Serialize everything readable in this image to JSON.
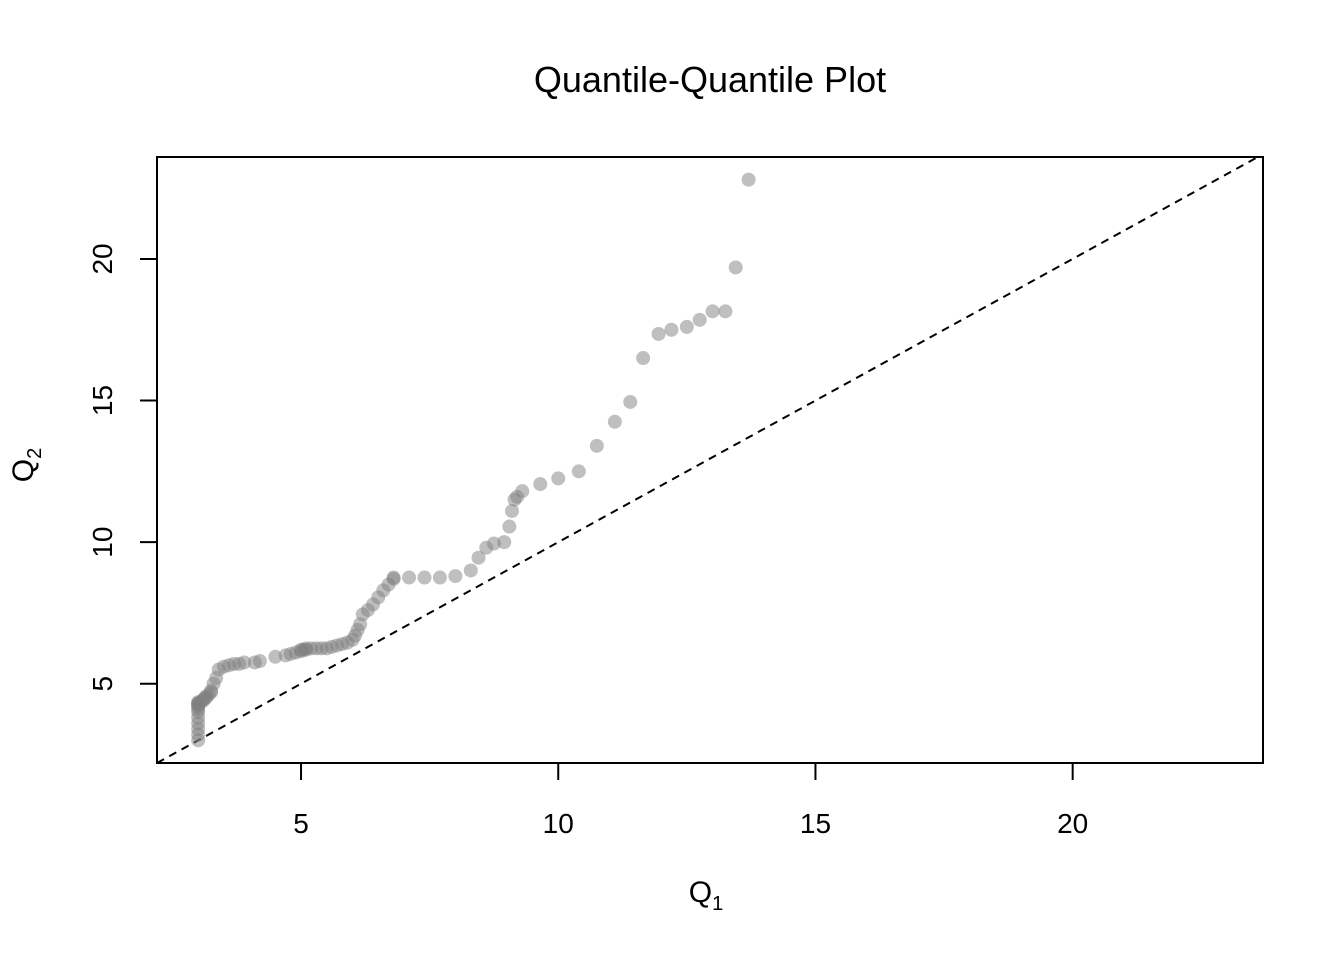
{
  "chart_data": {
    "type": "scatter",
    "title": "Quantile-Quantile Plot",
    "xlabel": {
      "main": "Q",
      "sub": "1"
    },
    "ylabel": {
      "main": "Q",
      "sub": "2"
    },
    "xlim": [
      2.2,
      23.7
    ],
    "ylim": [
      2.2,
      23.6
    ],
    "xticks": [
      5,
      10,
      15,
      20
    ],
    "yticks": [
      5,
      10,
      15,
      20
    ],
    "xtick_labels": [
      "5",
      "10",
      "15",
      "20"
    ],
    "ytick_labels": [
      "5",
      "10",
      "15",
      "20"
    ],
    "grid": false,
    "reference_line": {
      "type": "y=x",
      "style": "dashed",
      "color": "#000000"
    },
    "point_color": "#808080",
    "point_opacity": 0.5,
    "series": [
      {
        "x": [
          3.0,
          3.0,
          3.0,
          3.0,
          3.0,
          3.0,
          3.0,
          3.0,
          3.0,
          3.0,
          3.0,
          3.0,
          3.05,
          3.1,
          3.1,
          3.15,
          3.15,
          3.2,
          3.25,
          3.25,
          3.3,
          3.35,
          3.4,
          3.5,
          3.6,
          3.7,
          3.8,
          3.9,
          4.1,
          4.2,
          4.5,
          4.7,
          4.8,
          4.9,
          5.0,
          5.0,
          5.05,
          5.1,
          5.1,
          5.2,
          5.3,
          5.4,
          5.5,
          5.6,
          5.7,
          5.8,
          5.9,
          6.0,
          6.05,
          6.1,
          6.15,
          6.2,
          6.3,
          6.4,
          6.5,
          6.6,
          6.7,
          6.8,
          6.8,
          7.1,
          7.4,
          7.7,
          8.0,
          8.3,
          8.45,
          8.6,
          8.75,
          8.95,
          9.05,
          9.1,
          9.15,
          9.2,
          9.3,
          9.65,
          10.0,
          10.4,
          10.75,
          11.1,
          11.4,
          11.65,
          11.95,
          12.2,
          12.5,
          12.75,
          13.0,
          13.25,
          13.45,
          13.7
        ],
        "y": [
          3.0,
          3.2,
          3.4,
          3.6,
          3.8,
          4.0,
          4.1,
          4.2,
          4.25,
          4.3,
          4.3,
          4.35,
          4.35,
          4.4,
          4.45,
          4.5,
          4.55,
          4.6,
          4.7,
          4.75,
          5.0,
          5.2,
          5.5,
          5.6,
          5.65,
          5.7,
          5.7,
          5.75,
          5.75,
          5.8,
          5.95,
          6.0,
          6.05,
          6.1,
          6.15,
          6.2,
          6.2,
          6.2,
          6.25,
          6.25,
          6.25,
          6.25,
          6.25,
          6.3,
          6.35,
          6.4,
          6.45,
          6.55,
          6.7,
          6.9,
          7.1,
          7.45,
          7.6,
          7.8,
          8.05,
          8.3,
          8.5,
          8.7,
          8.75,
          8.75,
          8.75,
          8.75,
          8.8,
          9.0,
          9.45,
          9.8,
          9.95,
          10.0,
          10.55,
          11.1,
          11.5,
          11.6,
          11.8,
          12.05,
          12.25,
          12.5,
          13.4,
          14.25,
          14.95,
          16.5,
          17.35,
          17.5,
          17.6,
          17.85,
          18.15,
          18.15,
          19.7,
          22.8
        ]
      }
    ]
  }
}
